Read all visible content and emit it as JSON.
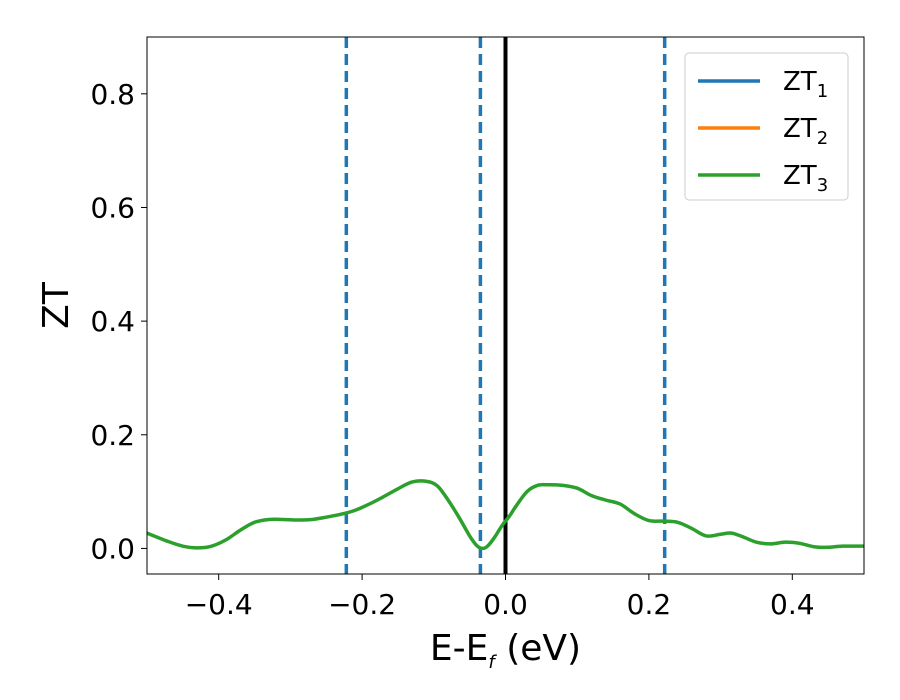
{
  "chart_data": {
    "type": "line",
    "title": "",
    "xlabel": {
      "main": "E-E",
      "sub": "f",
      "suffix": " (eV)"
    },
    "ylabel": "ZT",
    "xlim": [
      -0.5,
      0.5
    ],
    "ylim": [
      -0.045,
      0.9
    ],
    "x_ticks": [
      -0.4,
      -0.2,
      0.0,
      0.2,
      0.4
    ],
    "x_tick_labels": [
      "−0.4",
      "−0.2",
      "0.0",
      "0.2",
      "0.4"
    ],
    "y_ticks": [
      0.0,
      0.2,
      0.4,
      0.6,
      0.8
    ],
    "y_tick_labels": [
      "0.0",
      "0.2",
      "0.4",
      "0.6",
      "0.8"
    ],
    "grid": false,
    "legend_position": "top-right",
    "series": [
      {
        "name": "ZT",
        "subscript": "1",
        "color": "#1f77b4"
      },
      {
        "name": "ZT",
        "subscript": "2",
        "color": "#ff7f0e"
      },
      {
        "name": "ZT",
        "subscript": "3",
        "color": "#2ca02c",
        "x": [
          -0.5,
          -0.47,
          -0.45,
          -0.43,
          -0.41,
          -0.39,
          -0.37,
          -0.35,
          -0.33,
          -0.31,
          -0.29,
          -0.27,
          -0.25,
          -0.23,
          -0.21,
          -0.19,
          -0.17,
          -0.15,
          -0.13,
          -0.11,
          -0.095,
          -0.08,
          -0.065,
          -0.05,
          -0.04,
          -0.032,
          -0.025,
          -0.015,
          -0.005,
          0.005,
          0.015,
          0.03,
          0.045,
          0.06,
          0.08,
          0.1,
          0.12,
          0.14,
          0.16,
          0.18,
          0.2,
          0.22,
          0.24,
          0.26,
          0.28,
          0.3,
          0.315,
          0.33,
          0.35,
          0.37,
          0.39,
          0.41,
          0.43,
          0.45,
          0.47,
          0.5
        ],
        "y": [
          0.027,
          0.012,
          0.004,
          0.001,
          0.004,
          0.015,
          0.032,
          0.046,
          0.051,
          0.051,
          0.05,
          0.051,
          0.055,
          0.06,
          0.067,
          0.078,
          0.091,
          0.105,
          0.117,
          0.118,
          0.11,
          0.085,
          0.055,
          0.022,
          0.005,
          0.0,
          0.004,
          0.02,
          0.04,
          0.056,
          0.075,
          0.1,
          0.111,
          0.112,
          0.111,
          0.106,
          0.093,
          0.085,
          0.078,
          0.061,
          0.049,
          0.048,
          0.046,
          0.035,
          0.022,
          0.025,
          0.027,
          0.021,
          0.011,
          0.008,
          0.011,
          0.009,
          0.003,
          0.002,
          0.004,
          0.004
        ]
      }
    ],
    "vertical_lines": [
      {
        "x": -0.222,
        "style": "dashed",
        "color": "#1f77b4"
      },
      {
        "x": -0.035,
        "style": "dashed",
        "color": "#1f77b4"
      },
      {
        "x": 0.222,
        "style": "dashed",
        "color": "#1f77b4"
      },
      {
        "x": 0.0,
        "style": "solid",
        "color": "#000000"
      }
    ]
  }
}
